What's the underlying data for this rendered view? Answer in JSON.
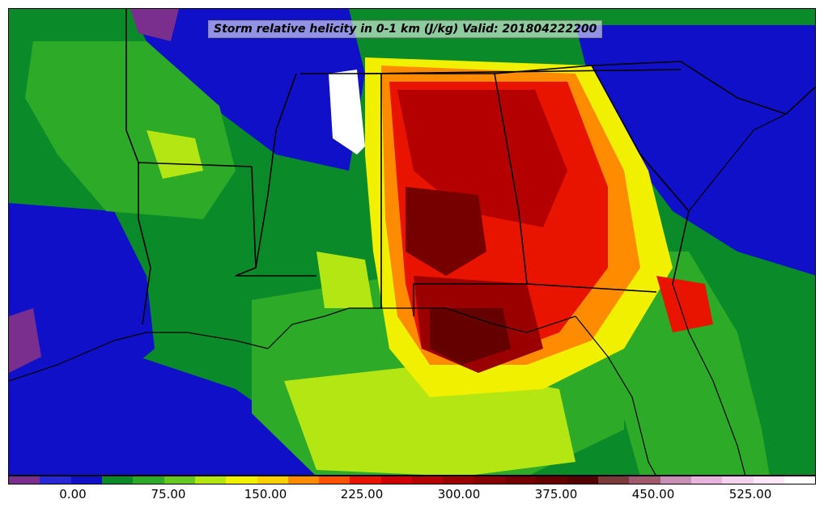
{
  "title": "Storm relative helicity in 0-1 km (J/kg) Valid: 201804222200",
  "colorbar": {
    "colors": [
      "#7a2e8e",
      "#2828d8",
      "#1010c8",
      "#0b8a2a",
      "#2caa28",
      "#64c81e",
      "#b4e614",
      "#f0f000",
      "#ffd000",
      "#ff8c00",
      "#ff5000",
      "#e81400",
      "#d00000",
      "#b40000",
      "#9a0000",
      "#880000",
      "#760000",
      "#640000",
      "#520000",
      "#7a3a3a",
      "#a05a6e",
      "#c890b4",
      "#e6b4dc",
      "#f5d2ee",
      "#ffe6f8",
      "#ffffff"
    ],
    "ticks": [
      "0.00",
      "75.00",
      "150.00",
      "225.00",
      "300.00",
      "375.00",
      "450.00",
      "525.00"
    ]
  }
}
